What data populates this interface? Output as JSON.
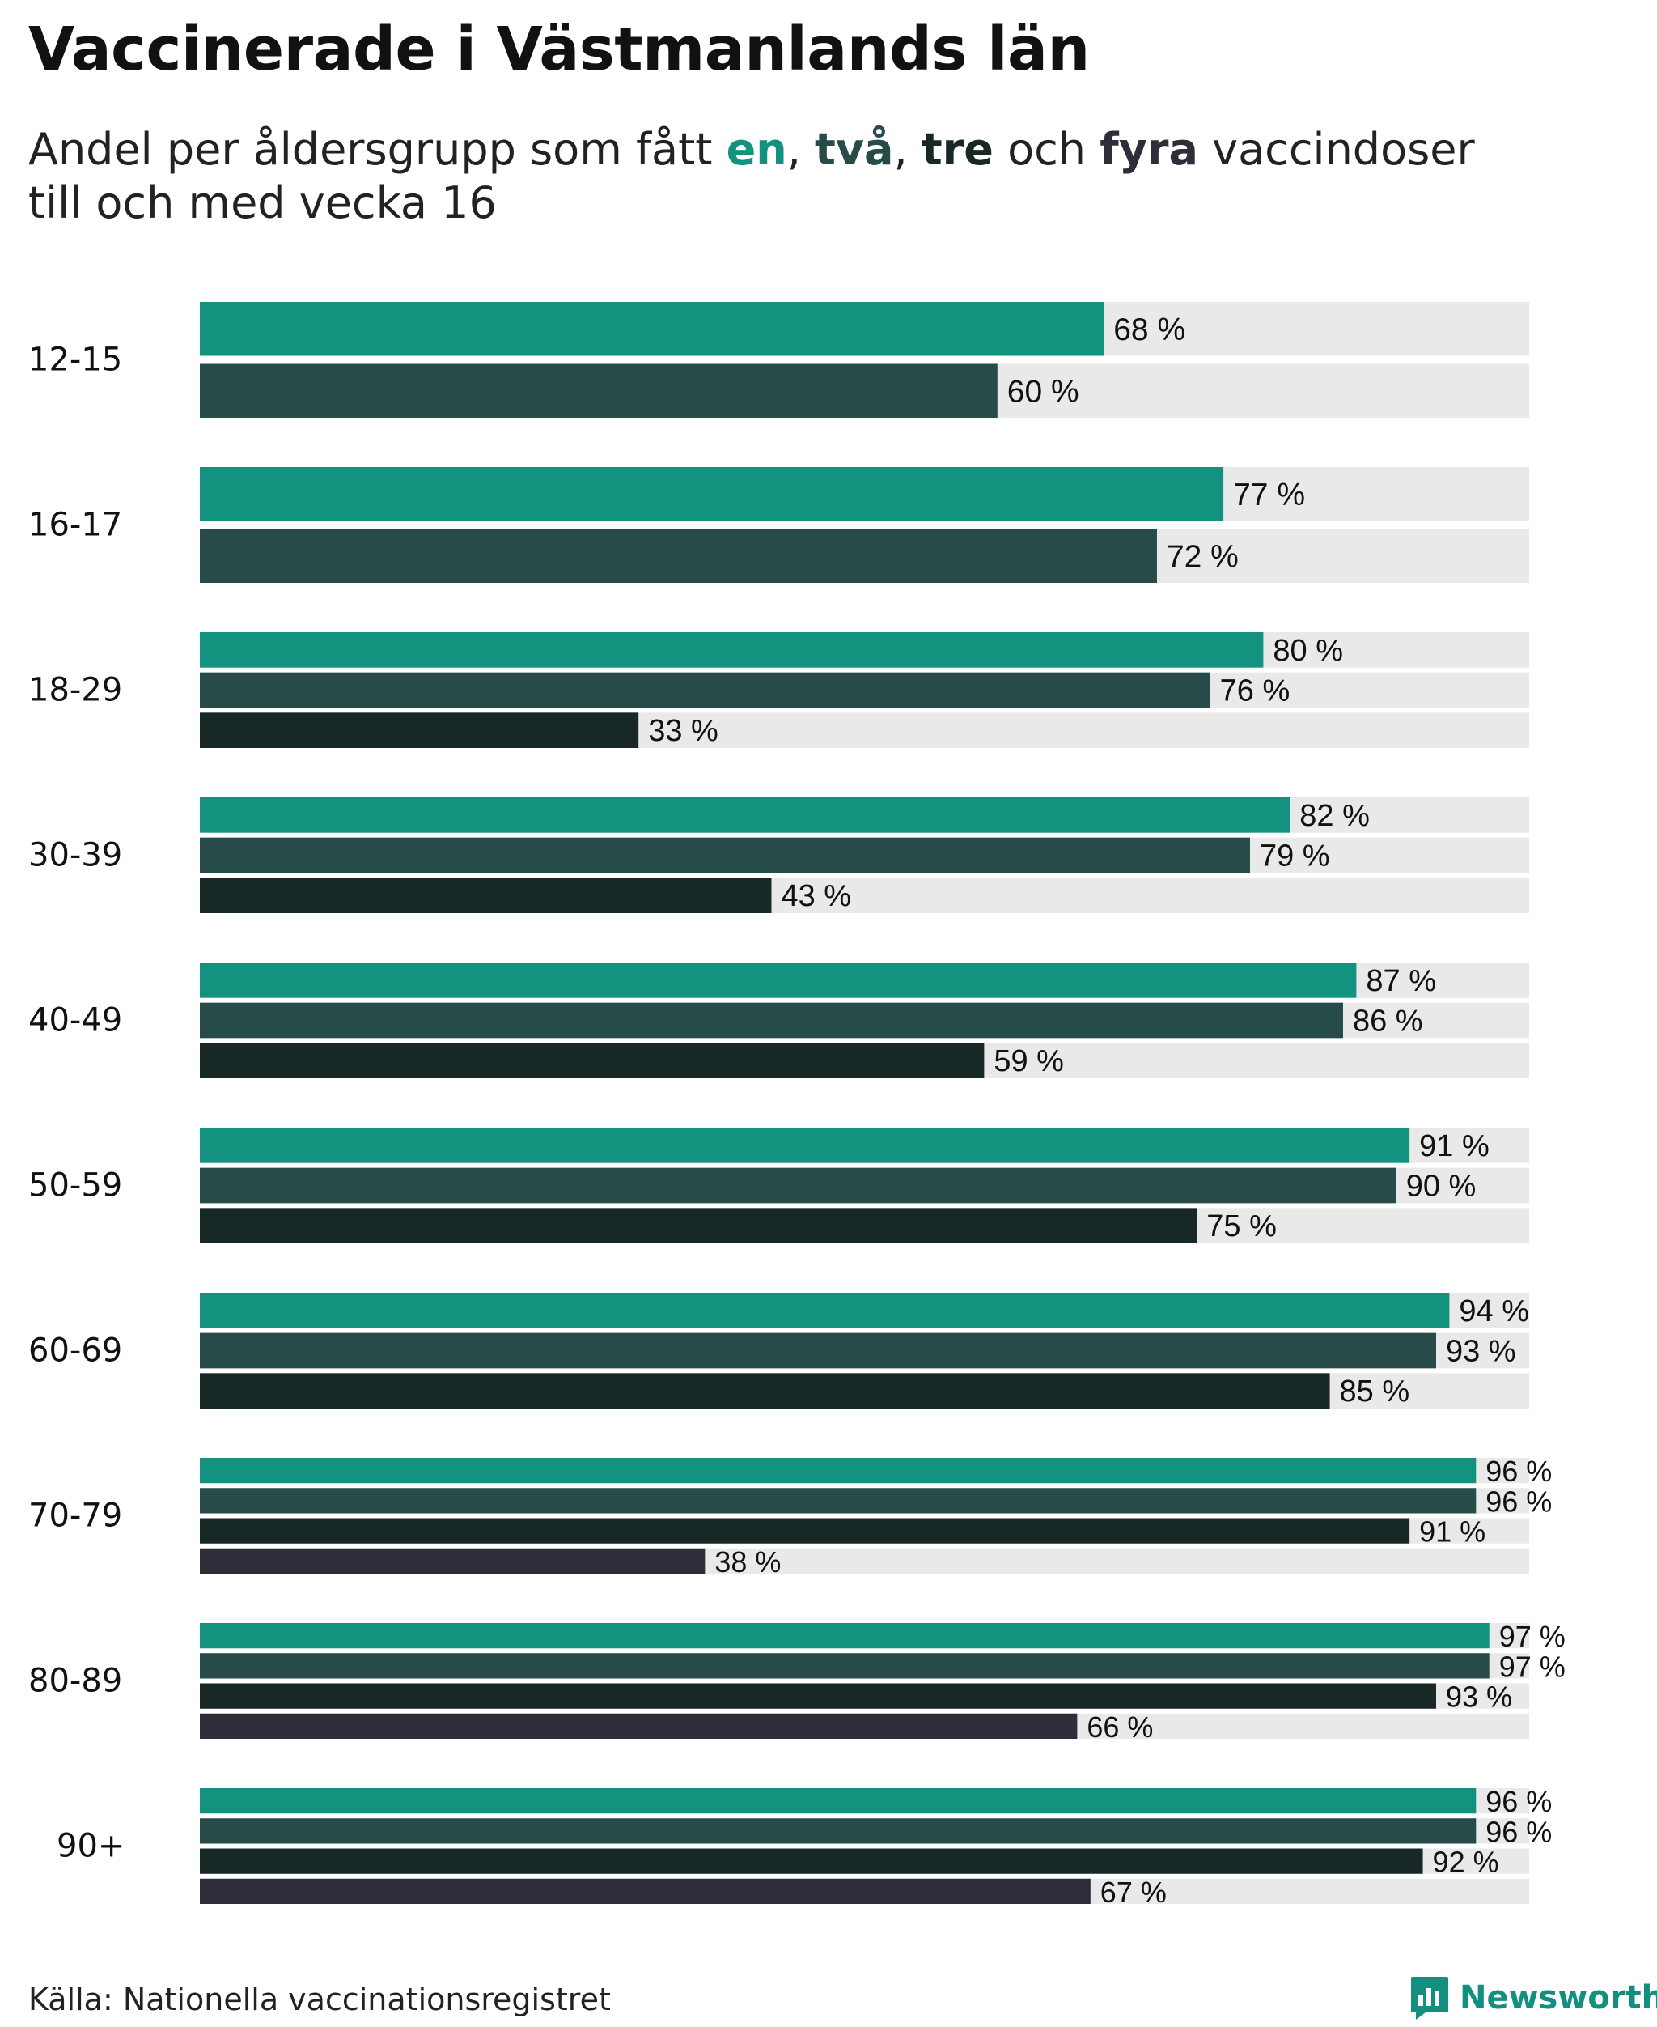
{
  "title": "Vaccinerade i Västmanlands län",
  "subtitle": {
    "prefix": "Andel per åldersgrupp som fått ",
    "dose1": "en",
    "sep1": ", ",
    "dose2": "två",
    "sep2": ", ",
    "dose3": "tre",
    "and": " och ",
    "dose4": "fyra",
    "suffix": " vaccindoser",
    "line2": "till och med vecka 16"
  },
  "colors": {
    "dose1": "#13937f",
    "dose2": "#264b48",
    "dose3": "#182826",
    "dose4": "#2e2e3a",
    "track": "#e9e9e9",
    "text": "#111111"
  },
  "chart_data": {
    "type": "bar",
    "orientation": "horizontal",
    "xlim": [
      0,
      100
    ],
    "value_suffix": " %",
    "series": [
      {
        "name": "en",
        "color": "#13937f"
      },
      {
        "name": "två",
        "color": "#264b48"
      },
      {
        "name": "tre",
        "color": "#182826"
      },
      {
        "name": "fyra",
        "color": "#2e2e3a"
      }
    ],
    "groups": [
      {
        "label": "12-15",
        "values": [
          68,
          60
        ]
      },
      {
        "label": "16-17",
        "values": [
          77,
          72
        ]
      },
      {
        "label": "18-29",
        "values": [
          80,
          76,
          33
        ]
      },
      {
        "label": "30-39",
        "values": [
          82,
          79,
          43
        ]
      },
      {
        "label": "40-49",
        "values": [
          87,
          86,
          59
        ]
      },
      {
        "label": "50-59",
        "values": [
          91,
          90,
          75
        ]
      },
      {
        "label": "60-69",
        "values": [
          94,
          93,
          85
        ]
      },
      {
        "label": "70-79",
        "values": [
          96,
          96,
          91,
          38
        ]
      },
      {
        "label": "80-89",
        "values": [
          97,
          97,
          93,
          66
        ]
      },
      {
        "label": "90+",
        "values": [
          96,
          96,
          92,
          67
        ]
      }
    ]
  },
  "source": "Källa: Nationella vaccinationsregistret",
  "brand": "Newsworthy",
  "brand_icon": "newsworthy-logo-icon"
}
